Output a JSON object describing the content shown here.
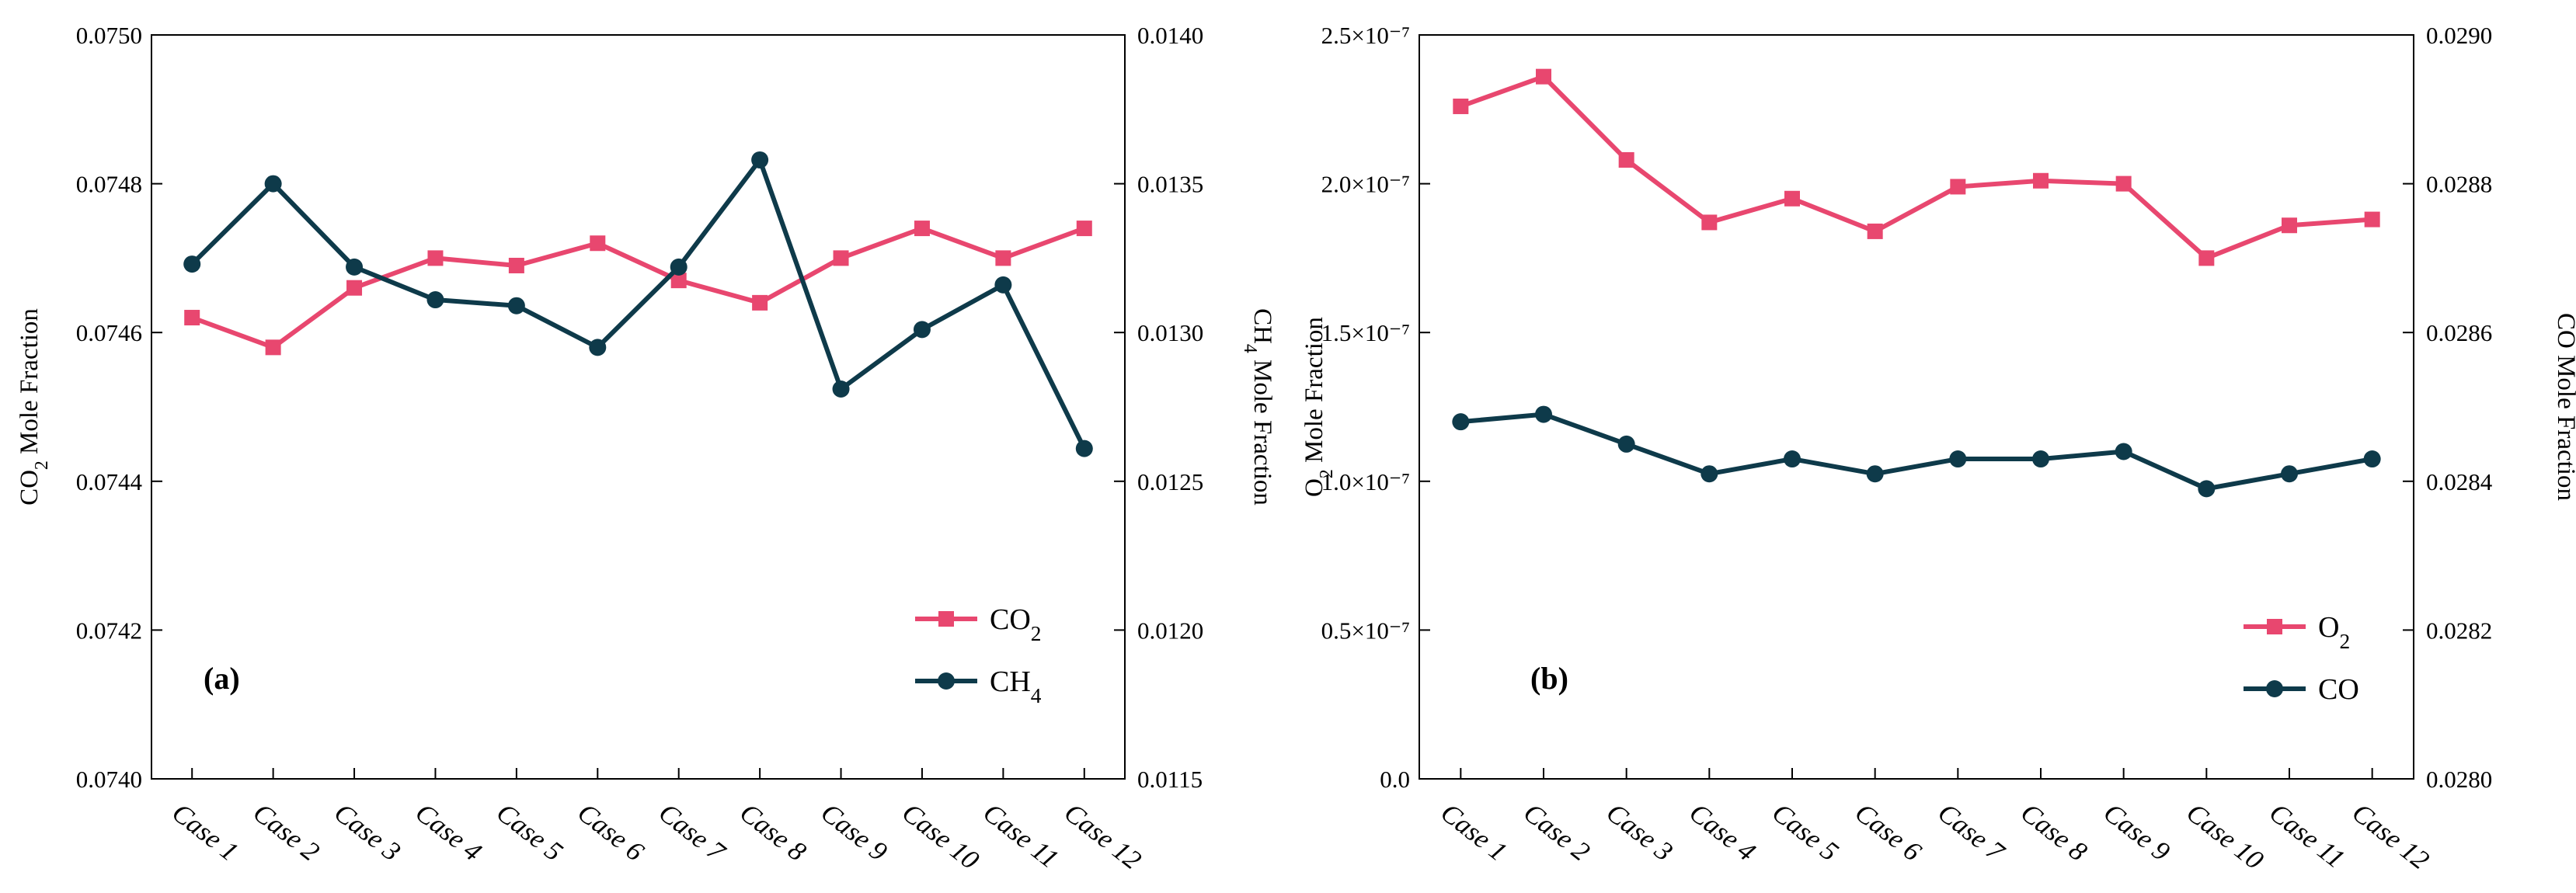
{
  "chart_data": [
    {
      "type": "line",
      "panel_label": "(a)",
      "categories": [
        "Case 1",
        "Case 2",
        "Case 3",
        "Case 4",
        "Case 5",
        "Case 6",
        "Case 7",
        "Case 8",
        "Case 9",
        "Case 10",
        "Case 11",
        "Case 12"
      ],
      "ylabel_left": {
        "main": "CO",
        "sub": "2",
        "rest": " Mole Fraction"
      },
      "ylabel_right": {
        "main": "CH",
        "sub": "4",
        "rest": " Mole Fraction"
      },
      "ylim_left": [
        0.074,
        0.075
      ],
      "ylim_right": [
        0.0115,
        0.014
      ],
      "yticks_left": [
        "0.0740",
        "0.0742",
        "0.0744",
        "0.0746",
        "0.0748",
        "0.0750"
      ],
      "yticks_right": [
        "0.0115",
        "0.0120",
        "0.0125",
        "0.0130",
        "0.0135",
        "0.0140"
      ],
      "legend_position": "lower-right",
      "grid": false,
      "series": [
        {
          "name": {
            "main": "CO",
            "sub": "2"
          },
          "axis": "left",
          "marker": "square",
          "color": "#E8476F",
          "values": [
            0.07462,
            0.07458,
            0.07466,
            0.0747,
            0.07469,
            0.07472,
            0.07467,
            0.07464,
            0.0747,
            0.07474,
            0.0747,
            0.07474
          ]
        },
        {
          "name": {
            "main": "CH",
            "sub": "4"
          },
          "axis": "right",
          "marker": "circle",
          "color": "#0E3A4A",
          "values": [
            0.01323,
            0.0135,
            0.01322,
            0.01311,
            0.01309,
            0.01295,
            0.01322,
            0.01358,
            0.01281,
            0.01301,
            0.01316,
            0.01261
          ]
        }
      ]
    },
    {
      "type": "line",
      "panel_label": "(b)",
      "categories": [
        "Case 1",
        "Case 2",
        "Case 3",
        "Case 4",
        "Case 5",
        "Case 6",
        "Case 7",
        "Case 8",
        "Case 9",
        "Case 10",
        "Case 11",
        "Case 12"
      ],
      "ylabel_left": {
        "main": "O",
        "sub": "2",
        "rest": " Mole Fraction"
      },
      "ylabel_right": {
        "main": "CO",
        "sub": "",
        "rest": " Mole Fraction"
      },
      "ylim_left": [
        0.0,
        2.5e-07
      ],
      "ylim_right": [
        0.028,
        0.029
      ],
      "yticks_left": [
        "0.0",
        "0.5×10⁻⁷",
        "1.0×10⁻⁷",
        "1.5×10⁻⁷",
        "2.0×10⁻⁷",
        "2.5×10⁻⁷"
      ],
      "yticks_right": [
        "0.0280",
        "0.0282",
        "0.0284",
        "0.0286",
        "0.0288",
        "0.0290"
      ],
      "legend_position": "lower-right",
      "grid": false,
      "series": [
        {
          "name": {
            "main": "O",
            "sub": "2"
          },
          "axis": "left",
          "marker": "square",
          "color": "#E8476F",
          "values": [
            2.26e-07,
            2.36e-07,
            2.08e-07,
            1.87e-07,
            1.95e-07,
            1.84e-07,
            1.99e-07,
            2.01e-07,
            2e-07,
            1.75e-07,
            1.86e-07,
            1.88e-07
          ]
        },
        {
          "name": {
            "main": "CO",
            "sub": ""
          },
          "axis": "right",
          "marker": "circle",
          "color": "#0E3A4A",
          "values": [
            0.02848,
            0.02849,
            0.02845,
            0.02841,
            0.02843,
            0.02841,
            0.02843,
            0.02843,
            0.02844,
            0.02839,
            0.02841,
            0.02843
          ]
        }
      ]
    }
  ]
}
